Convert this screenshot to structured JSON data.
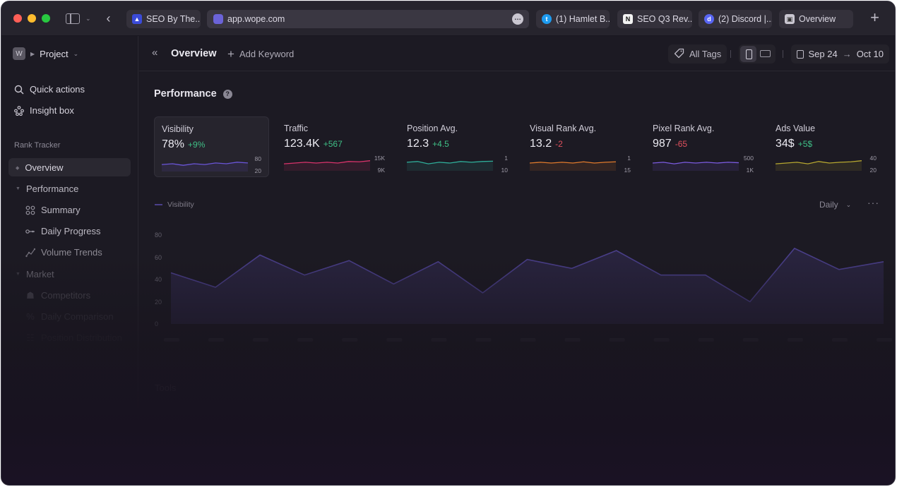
{
  "browser": {
    "url": "app.wope.com",
    "tabs": [
      {
        "label": "SEO By The...",
        "icon": "triangle-logo-icon"
      },
      {
        "label": "(1) Hamlet B...",
        "icon": "twitter-icon"
      },
      {
        "label": "SEO Q3 Rev...",
        "icon": "notion-icon"
      },
      {
        "label": "(2) Discord |...",
        "icon": "discord-icon"
      },
      {
        "label": "Overview",
        "icon": "app-icon"
      }
    ]
  },
  "sidebar": {
    "project_initial": "W",
    "project_label": "Project",
    "quick_actions": "Quick actions",
    "insight_box": "Insight box",
    "section_rank_tracker": "Rank Tracker",
    "overview": "Overview",
    "performance": "Performance",
    "summary": "Summary",
    "daily_progress": "Daily Progress",
    "volume_trends": "Volume Trends",
    "market": "Market",
    "competitors": "Competitors",
    "daily_comparison": "Daily Comparison",
    "position_distribution": "Position Distribution"
  },
  "topbar": {
    "title": "Overview",
    "add_keyword": "Add Keyword",
    "all_tags": "All Tags",
    "date_from": "Sep 24",
    "date_to": "Oct 10"
  },
  "performance": {
    "title": "Performance",
    "help": "?",
    "cards": [
      {
        "label": "Visibility",
        "value": "78%",
        "delta": "+9%",
        "delta_type": "pos",
        "max": "80",
        "min": "20",
        "color": "#6a55d8"
      },
      {
        "label": "Traffic",
        "value": "123.4K",
        "delta": "+567",
        "delta_type": "pos",
        "max": "15K",
        "min": "9K",
        "color": "#d9336b"
      },
      {
        "label": "Position Avg.",
        "value": "12.3",
        "delta": "+4.5",
        "delta_type": "pos",
        "max": "1",
        "min": "10",
        "color": "#2fae9a"
      },
      {
        "label": "Visual Rank Avg.",
        "value": "13.2",
        "delta": "-2",
        "delta_type": "neg",
        "max": "1",
        "min": "15",
        "color": "#e07a2c"
      },
      {
        "label": "Pixel Rank Avg.",
        "value": "987",
        "delta": "-65",
        "delta_type": "neg",
        "max": "500",
        "min": "1K",
        "color": "#7b5be0"
      },
      {
        "label": "Ads Value",
        "value": "34$",
        "delta": "+5$",
        "delta_type": "pos",
        "max": "40",
        "min": "20",
        "color": "#b7a830"
      }
    ]
  },
  "main_chart": {
    "legend": "Visibility",
    "interval": "Daily",
    "more": "···",
    "y_ticks": [
      "80",
      "60",
      "40",
      "20",
      "0"
    ],
    "values": [
      46,
      33,
      62,
      44,
      57,
      36,
      56,
      28,
      58,
      50,
      66,
      44,
      44,
      20,
      68,
      49,
      56
    ],
    "ylim": [
      0,
      80
    ],
    "color": "#4a3f8a"
  },
  "tools_title": "Tools"
}
